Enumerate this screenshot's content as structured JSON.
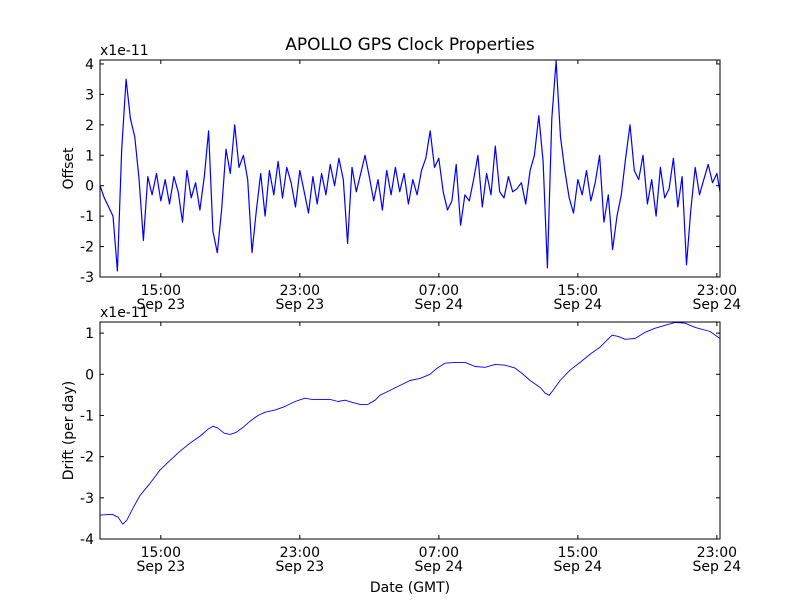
{
  "title": "APOLLO GPS Clock Properties",
  "colors": {
    "line": "#0000ff",
    "axes": "#000000",
    "background": "#ffffff"
  },
  "chart_data": [
    {
      "type": "line",
      "name": "offset",
      "ylabel": "Offset",
      "xlabel": "",
      "offset_text": "x1e-11",
      "x_unit": "hours since Sep 23 00:00 GMT",
      "xlim": [
        11.5,
        47.18
      ],
      "ylim": [
        -3,
        4.13
      ],
      "yticks": [
        4,
        3,
        2,
        1,
        0,
        -1,
        -2,
        -3
      ],
      "xticks": [
        {
          "x": 15,
          "time": "15:00",
          "date": "Sep 23"
        },
        {
          "x": 23,
          "time": "23:00",
          "date": "Sep 23"
        },
        {
          "x": 31,
          "time": "07:00",
          "date": "Sep 24"
        },
        {
          "x": 39,
          "time": "15:00",
          "date": "Sep 24"
        },
        {
          "x": 47,
          "time": "23:00",
          "date": "Sep 24"
        }
      ],
      "x_start": 11.5,
      "x_step": 0.25,
      "values": [
        0,
        -0.4,
        -0.7,
        -1.0,
        -2.8,
        1.2,
        3.5,
        2.2,
        1.6,
        0.2,
        -1.8,
        0.3,
        -0.3,
        0.4,
        -0.5,
        0.2,
        -0.6,
        0.3,
        -0.2,
        -1.2,
        0.5,
        -0.4,
        0.1,
        -0.8,
        0.3,
        1.8,
        -1.5,
        -2.2,
        -0.8,
        1.2,
        0.4,
        2.0,
        0.6,
        1.0,
        0.2,
        -2.2,
        -0.8,
        0.4,
        -1.0,
        0.5,
        -0.3,
        0.8,
        -0.4,
        0.6,
        0.1,
        -0.7,
        0.5,
        -0.2,
        -0.9,
        0.3,
        -0.6,
        0.4,
        -0.3,
        0.7,
        0.0,
        0.9,
        0.2,
        -1.9,
        0.6,
        -0.2,
        0.4,
        1.0,
        0.3,
        -0.5,
        0.2,
        -0.8,
        0.5,
        -0.3,
        0.6,
        -0.2,
        0.4,
        -0.6,
        0.2,
        -0.3,
        0.5,
        0.9,
        1.8,
        0.6,
        0.9,
        -0.2,
        -0.8,
        -0.5,
        0.7,
        -1.3,
        -0.3,
        -0.5,
        0.2,
        1.0,
        -0.7,
        0.4,
        -0.3,
        1.3,
        -0.2,
        -0.4,
        0.3,
        -0.2,
        -0.1,
        0.1,
        -0.6,
        0.5,
        1.0,
        2.3,
        0.8,
        -2.7,
        2.2,
        4.1,
        1.6,
        0.5,
        -0.4,
        -0.9,
        0.2,
        -0.3,
        0.5,
        -0.5,
        0.1,
        1.0,
        -1.2,
        -0.3,
        -2.1,
        -1.0,
        -0.3,
        0.9,
        2.0,
        0.5,
        0.2,
        1.0,
        -0.6,
        0.2,
        -1.0,
        0.6,
        -0.4,
        -0.1,
        0.9,
        -0.7,
        0.3,
        -2.6,
        -0.8,
        0.6,
        -0.3,
        0.2,
        0.7,
        0.1,
        0.4,
        -0.2
      ]
    },
    {
      "type": "line",
      "name": "drift",
      "ylabel": "Drift (per day)",
      "xlabel": "Date (GMT)",
      "offset_text": "x1e-11",
      "x_unit": "hours since Sep 23 00:00 GMT",
      "xlim": [
        11.5,
        47.18
      ],
      "ylim": [
        -4,
        1.27
      ],
      "yticks": [
        1,
        0,
        -1,
        -2,
        -3,
        -4
      ],
      "xticks": [
        {
          "x": 15,
          "time": "15:00",
          "date": "Sep 23"
        },
        {
          "x": 23,
          "time": "23:00",
          "date": "Sep 23"
        },
        {
          "x": 31,
          "time": "07:00",
          "date": "Sep 24"
        },
        {
          "x": 39,
          "time": "15:00",
          "date": "Sep 24"
        },
        {
          "x": 47,
          "time": "23:00",
          "date": "Sep 24"
        }
      ],
      "x": [
        11.5,
        12.19,
        12.54,
        12.82,
        13.05,
        13.4,
        13.8,
        14.38,
        14.95,
        15.53,
        16.1,
        16.68,
        17.26,
        17.72,
        18.0,
        18.29,
        18.64,
        18.98,
        19.33,
        19.73,
        20.13,
        20.59,
        21.0,
        21.57,
        22.15,
        22.72,
        23.3,
        23.7,
        24.16,
        24.74,
        25.2,
        25.6,
        26.0,
        26.46,
        26.92,
        27.33,
        27.61,
        28.19,
        28.77,
        29.34,
        29.92,
        30.49,
        30.9,
        31.36,
        31.94,
        32.51,
        32.8,
        33.09,
        33.67,
        34.24,
        34.82,
        35.39,
        35.79,
        36.25,
        36.83,
        37.12,
        37.35,
        37.57,
        37.98,
        38.55,
        39.13,
        39.71,
        40.28,
        40.68,
        40.97,
        41.32,
        41.72,
        42.29,
        42.87,
        43.45,
        44.02,
        44.6,
        45.17,
        45.75,
        46.61,
        47.18
      ],
      "y": [
        -3.42,
        -3.4,
        -3.47,
        -3.64,
        -3.54,
        -3.25,
        -2.94,
        -2.65,
        -2.33,
        -2.09,
        -1.87,
        -1.67,
        -1.5,
        -1.33,
        -1.26,
        -1.31,
        -1.43,
        -1.46,
        -1.41,
        -1.29,
        -1.14,
        -1.0,
        -0.92,
        -0.87,
        -0.78,
        -0.66,
        -0.58,
        -0.61,
        -0.61,
        -0.61,
        -0.66,
        -0.63,
        -0.68,
        -0.73,
        -0.73,
        -0.63,
        -0.51,
        -0.39,
        -0.27,
        -0.15,
        -0.1,
        0.0,
        0.15,
        0.27,
        0.29,
        0.29,
        0.24,
        0.19,
        0.17,
        0.24,
        0.22,
        0.15,
        0.02,
        -0.15,
        -0.32,
        -0.46,
        -0.51,
        -0.39,
        -0.15,
        0.1,
        0.29,
        0.49,
        0.66,
        0.83,
        0.95,
        0.92,
        0.85,
        0.87,
        1.02,
        1.12,
        1.19,
        1.26,
        1.24,
        1.14,
        1.04,
        0.87
      ]
    }
  ]
}
